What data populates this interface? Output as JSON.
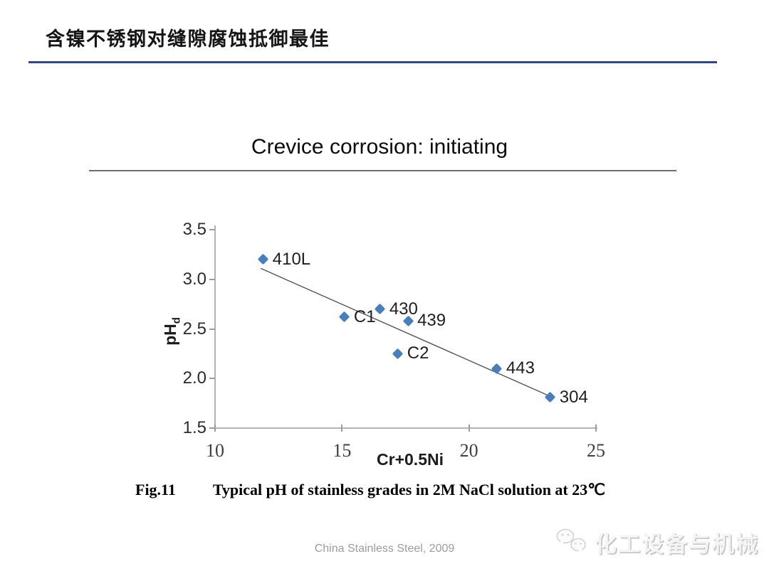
{
  "slide": {
    "title": "含镍不锈钢对缝隙腐蚀抵御最佳",
    "footer": "China Stainless Steel, 2009",
    "watermark": {
      "icon": "wechat-icon",
      "label": "化工设备与机械"
    }
  },
  "figure": {
    "caption_prefix": "Fig.11",
    "caption": "Typical pH of stainless grades in 2M NaCl solution at 23℃"
  },
  "chart_data": {
    "type": "scatter",
    "title": "Crevice corrosion: initiating",
    "xlabel": "Cr+0.5Ni",
    "ylabel": {
      "main": "pH",
      "sub": "d"
    },
    "xlim": [
      10,
      25
    ],
    "ylim": [
      1.5,
      3.5
    ],
    "xticks": [
      10,
      15,
      20,
      25
    ],
    "yticks": [
      1.5,
      2.0,
      2.5,
      3.0,
      3.5
    ],
    "grid": false,
    "legend": null,
    "marker_color": "#4a7ebb",
    "trendline_color": "#555555",
    "points": [
      {
        "label": "410L",
        "x": 11.9,
        "y": 3.2
      },
      {
        "label": "C1",
        "x": 15.1,
        "y": 2.62
      },
      {
        "label": "430",
        "x": 16.5,
        "y": 2.7
      },
      {
        "label": "439",
        "x": 17.6,
        "y": 2.58
      },
      {
        "label": "C2",
        "x": 17.2,
        "y": 2.25
      },
      {
        "label": "443",
        "x": 21.1,
        "y": 2.1
      },
      {
        "label": "304",
        "x": 23.2,
        "y": 1.81
      }
    ],
    "trendline": {
      "x1": 11.8,
      "y1": 3.11,
      "x2": 23.2,
      "y2": 1.82
    }
  }
}
